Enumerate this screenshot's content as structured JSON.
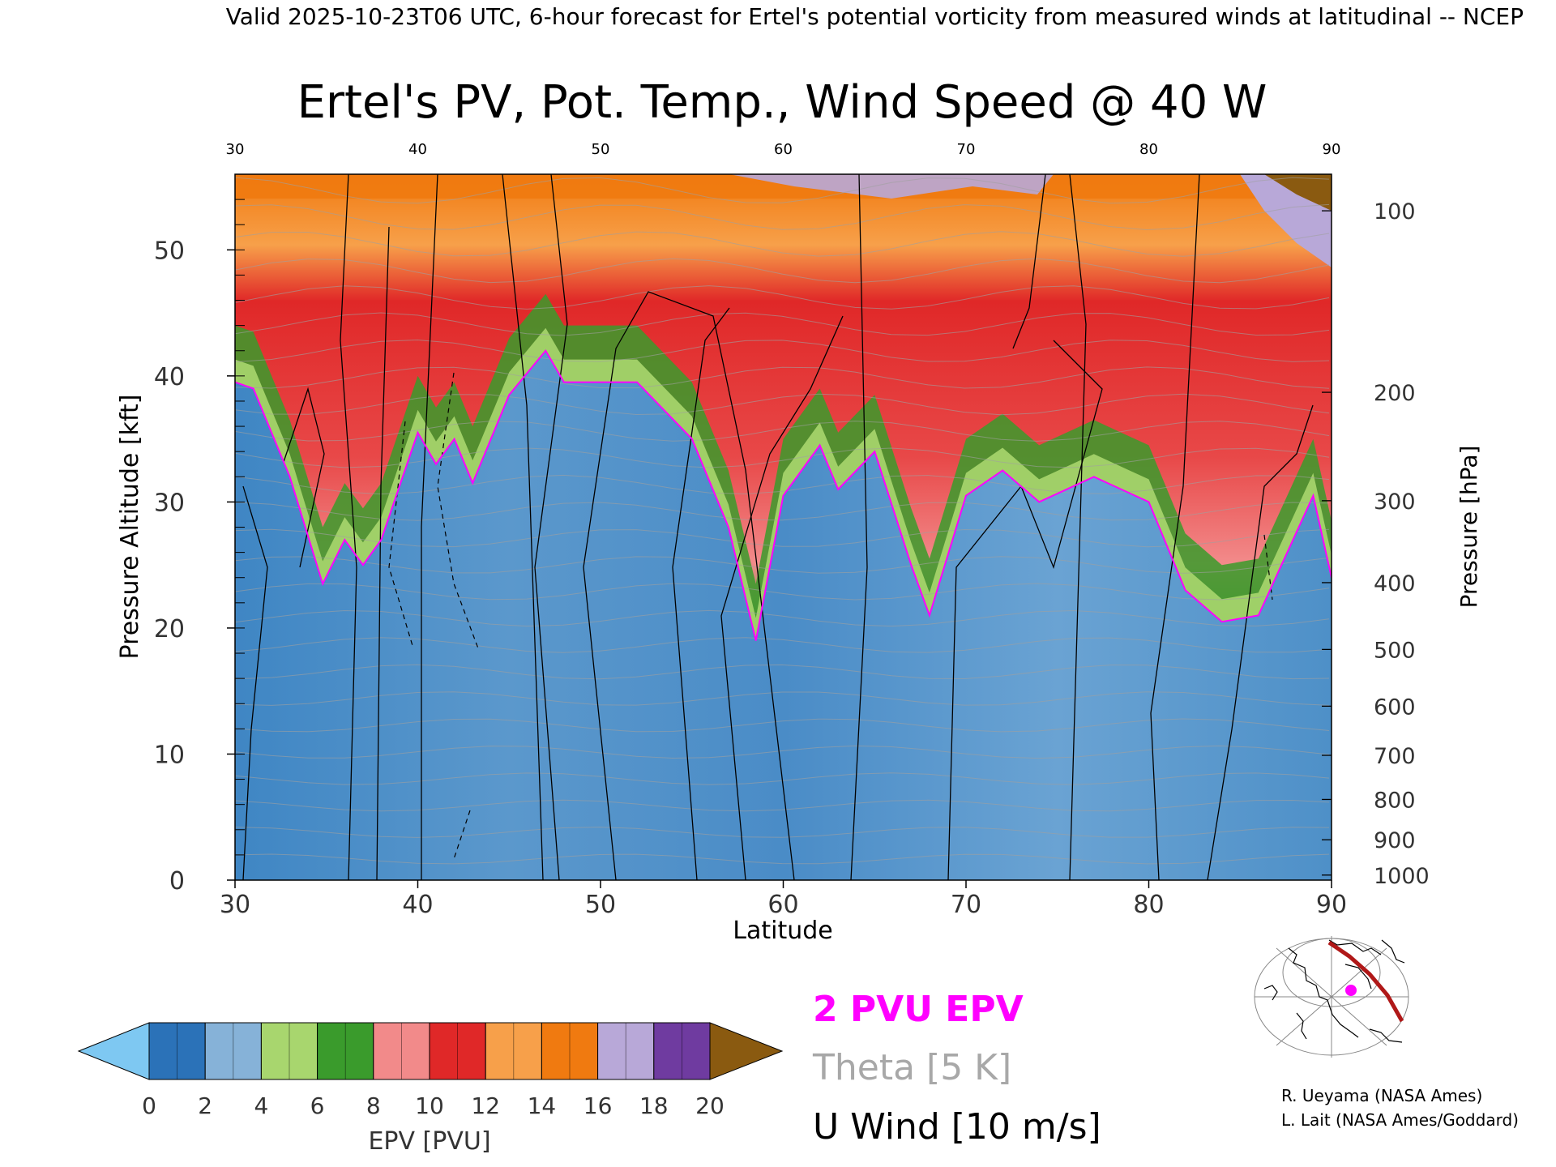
{
  "header": {
    "valid_line": "Valid 2025-10-23T06 UTC, 6-hour forecast for Ertel's potential vorticity from measured winds at latitudinal -- NCEP"
  },
  "chart_data": {
    "type": "heatmap",
    "title": "Ertel's PV, Pot. Temp., Wind Speed @ 40 W",
    "xlabel": "Latitude",
    "ylabel_left": "Pressure Altitude [kft]",
    "ylabel_right": "Pressure [hPa]",
    "xlim": [
      30,
      90
    ],
    "ylim_kft": [
      0,
      56
    ],
    "x_ticks": [
      "30",
      "40",
      "50",
      "60",
      "70",
      "80",
      "90"
    ],
    "y_ticks_kft": [
      "0",
      "10",
      "20",
      "30",
      "40",
      "50"
    ],
    "pressure_ticks": [
      {
        "hPa": "100",
        "kft": 53.1
      },
      {
        "hPa": "200",
        "kft": 38.7
      },
      {
        "hPa": "300",
        "kft": 30.1
      },
      {
        "hPa": "400",
        "kft": 23.6
      },
      {
        "hPa": "500",
        "kft": 18.3
      },
      {
        "hPa": "600",
        "kft": 13.8
      },
      {
        "hPa": "700",
        "kft": 9.9
      },
      {
        "hPa": "800",
        "kft": 6.4
      },
      {
        "hPa": "900",
        "kft": 3.2
      },
      {
        "hPa": "1000",
        "kft": 0.4
      }
    ],
    "tropopause_2pvu_kft": [
      {
        "lat": 30,
        "kft": 39.5
      },
      {
        "lat": 31,
        "kft": 39.0
      },
      {
        "lat": 33,
        "kft": 32.0
      },
      {
        "lat": 34.8,
        "kft": 23.5
      },
      {
        "lat": 36,
        "kft": 27.0
      },
      {
        "lat": 37,
        "kft": 25.0
      },
      {
        "lat": 38,
        "kft": 27.0
      },
      {
        "lat": 40,
        "kft": 35.5
      },
      {
        "lat": 41,
        "kft": 33.0
      },
      {
        "lat": 42,
        "kft": 35.0
      },
      {
        "lat": 43,
        "kft": 31.5
      },
      {
        "lat": 45,
        "kft": 38.5
      },
      {
        "lat": 47,
        "kft": 42.0
      },
      {
        "lat": 48,
        "kft": 39.5
      },
      {
        "lat": 52,
        "kft": 39.5
      },
      {
        "lat": 55,
        "kft": 35.0
      },
      {
        "lat": 57,
        "kft": 28.0
      },
      {
        "lat": 58.5,
        "kft": 19.0
      },
      {
        "lat": 60,
        "kft": 30.5
      },
      {
        "lat": 62,
        "kft": 34.5
      },
      {
        "lat": 63,
        "kft": 31.0
      },
      {
        "lat": 65,
        "kft": 34.0
      },
      {
        "lat": 67,
        "kft": 25.0
      },
      {
        "lat": 68,
        "kft": 21.0
      },
      {
        "lat": 70,
        "kft": 30.5
      },
      {
        "lat": 72,
        "kft": 32.5
      },
      {
        "lat": 74,
        "kft": 30.0
      },
      {
        "lat": 77,
        "kft": 32.0
      },
      {
        "lat": 80,
        "kft": 30.0
      },
      {
        "lat": 82,
        "kft": 23.0
      },
      {
        "lat": 84,
        "kft": 20.5
      },
      {
        "lat": 86,
        "kft": 21.0
      },
      {
        "lat": 89,
        "kft": 30.5
      },
      {
        "lat": 90,
        "kft": 24.0
      }
    ],
    "legend": {
      "colorbar_label": "EPV [PVU]",
      "colorbar_ticks": [
        "0",
        "2",
        "4",
        "6",
        "8",
        "10",
        "12",
        "14",
        "16",
        "18",
        "20"
      ],
      "colorbar_colors": [
        "#2b72b8",
        "#86b2d8",
        "#a8d66e",
        "#3a9b2c",
        "#f28a8a",
        "#e02828",
        "#f7a04a",
        "#f07a10",
        "#b8a8d8",
        "#6f3ba0",
        "#f2ea8e",
        "#8a5a10"
      ],
      "under_color": "#7ec8f2",
      "over_color": "#8a5a10",
      "items": [
        {
          "label": "2 PVU EPV",
          "color": "#ff00ff"
        },
        {
          "label": "Theta [5 K]",
          "color": "#a8a8a8"
        },
        {
          "label": "U Wind [10 m/s]",
          "color": "#000000"
        }
      ]
    }
  },
  "credits": {
    "line1": "R. Ueyama (NASA Ames)",
    "line2": "L. Lait (NASA Ames/Goddard)"
  },
  "colors": {
    "tropopause": "#ff00ff",
    "theta": "#a0a0a0",
    "wind": "#000000",
    "map_path": "#b01818",
    "map_marker": "#ff00ff"
  }
}
